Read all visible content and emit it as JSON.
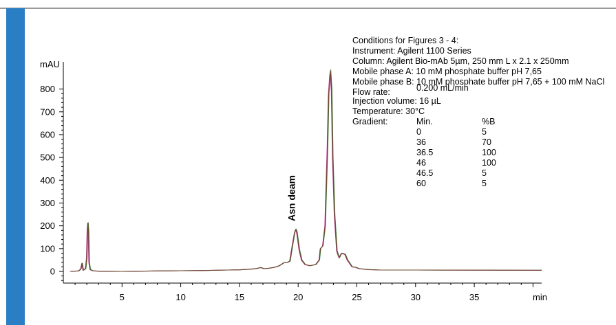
{
  "colors": {
    "accent_bar": "#2a7ec4",
    "rule": "#9a9a9a"
  },
  "chart_data": {
    "type": "line",
    "title": "",
    "xlabel": "min",
    "ylabel": "mAU",
    "xlim": [
      0,
      60
    ],
    "ylim": [
      -50,
      950
    ],
    "x_ticks": [
      5,
      10,
      15,
      20,
      25,
      30,
      35
    ],
    "y_ticks": [
      0,
      100,
      200,
      300,
      400,
      500,
      600,
      700,
      800
    ],
    "grid": false,
    "legend": "none",
    "series": [
      {
        "color": "#3b8f4e",
        "shift": 0.03,
        "scale": 1.005,
        "x": [
          0.6,
          1.3,
          1.4,
          1.5,
          1.6,
          1.7,
          1.9,
          2.0,
          2.05,
          2.1,
          2.15,
          2.2,
          2.3,
          2.5,
          3.0,
          5,
          8,
          10,
          12,
          14,
          15,
          16,
          16.5,
          16.8,
          17.1,
          17.5,
          18,
          18.4,
          18.8,
          19.1,
          19.3,
          19.5,
          19.7,
          19.8,
          19.9,
          20.1,
          20.3,
          20.6,
          21,
          21.5,
          21.8,
          21.9,
          22.1,
          22.3,
          22.5,
          22.6,
          22.7,
          22.75,
          22.85,
          22.95,
          23.1,
          23.3,
          23.5,
          23.7,
          24,
          24.2,
          24.4,
          24.6,
          24.9,
          25.2,
          25.6,
          26,
          27,
          30,
          40,
          50,
          60
        ],
        "y": [
          0,
          2,
          6,
          12,
          36,
          5,
          12,
          60,
          180,
          213,
          170,
          40,
          8,
          3,
          1,
          0,
          2,
          3,
          4,
          6,
          7,
          10,
          13,
          17,
          12,
          14,
          18,
          25,
          38,
          40,
          45,
          110,
          170,
          185,
          170,
          95,
          50,
          30,
          25,
          30,
          50,
          100,
          112,
          200,
          550,
          780,
          860,
          880,
          800,
          500,
          250,
          90,
          60,
          80,
          75,
          50,
          35,
          20,
          18,
          12,
          10,
          8,
          6,
          6,
          5,
          5,
          5
        ]
      },
      {
        "color": "#c6349a",
        "shift": -0.03,
        "scale": 0.99,
        "x": [
          0.6,
          1.3,
          1.4,
          1.5,
          1.6,
          1.7,
          1.9,
          2.0,
          2.05,
          2.1,
          2.15,
          2.2,
          2.3,
          2.5,
          3.0,
          5,
          8,
          10,
          12,
          14,
          15,
          16,
          16.5,
          16.8,
          17.1,
          17.5,
          18,
          18.4,
          18.8,
          19.1,
          19.3,
          19.5,
          19.7,
          19.8,
          19.9,
          20.1,
          20.3,
          20.6,
          21,
          21.5,
          21.8,
          21.9,
          22.1,
          22.3,
          22.5,
          22.6,
          22.7,
          22.75,
          22.85,
          22.95,
          23.1,
          23.3,
          23.5,
          23.7,
          24,
          24.2,
          24.4,
          24.6,
          24.9,
          25.2,
          25.6,
          26,
          27,
          30,
          40,
          50,
          60
        ],
        "y": [
          0,
          2,
          6,
          12,
          36,
          5,
          12,
          60,
          180,
          213,
          170,
          40,
          8,
          3,
          1,
          0,
          2,
          3,
          4,
          6,
          7,
          10,
          13,
          17,
          12,
          14,
          18,
          25,
          38,
          40,
          45,
          110,
          170,
          185,
          170,
          95,
          50,
          30,
          25,
          30,
          50,
          100,
          112,
          200,
          550,
          780,
          860,
          880,
          800,
          500,
          250,
          90,
          60,
          80,
          75,
          50,
          35,
          20,
          18,
          12,
          10,
          8,
          6,
          6,
          5,
          5,
          5
        ]
      },
      {
        "color": "#6b4a2a",
        "shift": 0,
        "scale": 1,
        "x": [
          0.6,
          1.3,
          1.4,
          1.5,
          1.6,
          1.7,
          1.9,
          2.0,
          2.05,
          2.1,
          2.15,
          2.2,
          2.3,
          2.5,
          3.0,
          5,
          8,
          10,
          12,
          14,
          15,
          16,
          16.5,
          16.8,
          17.1,
          17.5,
          18,
          18.4,
          18.8,
          19.1,
          19.3,
          19.5,
          19.7,
          19.8,
          19.9,
          20.1,
          20.3,
          20.6,
          21,
          21.5,
          21.8,
          21.9,
          22.1,
          22.3,
          22.5,
          22.6,
          22.7,
          22.75,
          22.85,
          22.95,
          23.1,
          23.3,
          23.5,
          23.7,
          24,
          24.2,
          24.4,
          24.6,
          24.9,
          25.2,
          25.6,
          26,
          27,
          30,
          40,
          50,
          60
        ],
        "y": [
          0,
          2,
          6,
          12,
          36,
          5,
          12,
          60,
          180,
          213,
          170,
          40,
          8,
          3,
          1,
          0,
          2,
          3,
          4,
          6,
          7,
          10,
          13,
          17,
          12,
          14,
          18,
          25,
          38,
          40,
          45,
          110,
          170,
          185,
          170,
          95,
          50,
          30,
          25,
          30,
          50,
          100,
          112,
          200,
          550,
          780,
          860,
          880,
          800,
          500,
          250,
          90,
          60,
          80,
          75,
          50,
          35,
          20,
          18,
          12,
          10,
          8,
          6,
          6,
          5,
          5,
          5
        ]
      }
    ],
    "annotations": [
      {
        "text": "Asn deam",
        "x": 19.9,
        "y": 190,
        "rotation": -90
      }
    ]
  },
  "conditions": {
    "heading": "Conditions for Figures 3 - 4:",
    "instrument": "Instrument:  Agilent 1100 Series",
    "column": "Column: Agilent Bio-mAb 5µm, 250 mm L x 2.1 x 250mm",
    "mobile_a": "Mobile phase A: 10 mM phosphate buffer pH 7,65",
    "mobile_b": "Mobile phase B: 10 mM phosphate buffer pH 7,65 + 100 mM NaCl",
    "flow_label": "Flow rate:",
    "flow_value": "0.200 mL/min",
    "injection": "Injection volume:  16 µL",
    "temperature": "Temperature:  30°C",
    "gradient_label": "Gradient:",
    "gradient_headers": [
      "Min.",
      "%B"
    ],
    "gradient_rows": [
      [
        "0",
        "5"
      ],
      [
        "36",
        "70"
      ],
      [
        "36.5",
        "100"
      ],
      [
        "46",
        "100"
      ],
      [
        "46.5",
        "5"
      ],
      [
        "60",
        "5"
      ]
    ]
  }
}
